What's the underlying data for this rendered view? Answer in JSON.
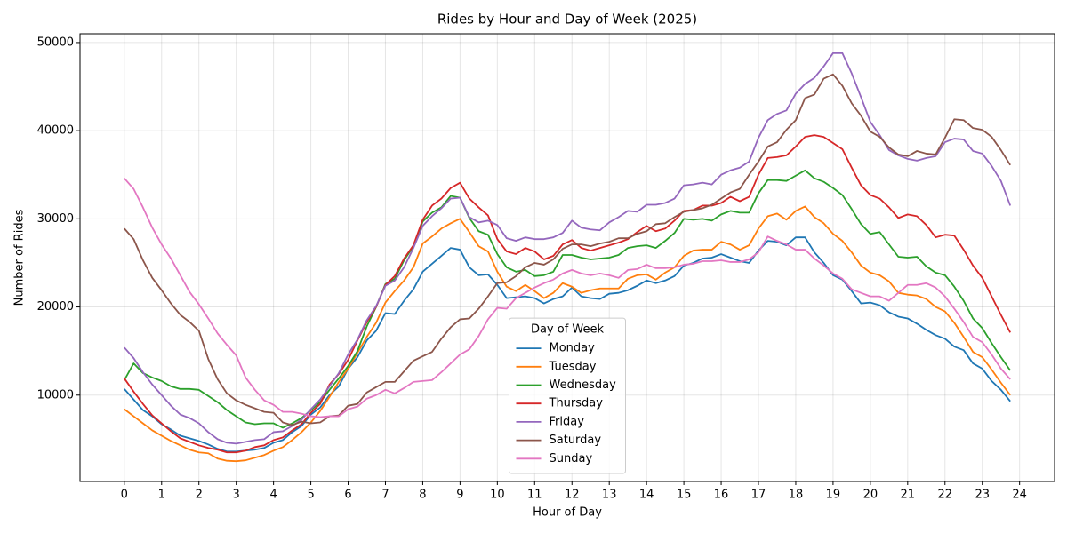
{
  "chart_data": {
    "type": "line",
    "title": "Rides by Hour and Day of Week (2025)",
    "x_label": "Hour of Day",
    "y_label": "Number of Rides",
    "x": [
      0,
      0.25,
      0.5,
      0.75,
      1,
      1.25,
      1.5,
      1.75,
      2,
      2.25,
      2.5,
      2.75,
      3,
      3.25,
      3.5,
      3.75,
      4,
      4.25,
      4.5,
      4.75,
      5,
      5.25,
      5.5,
      5.75,
      6,
      6.25,
      6.5,
      6.75,
      7,
      7.25,
      7.5,
      7.75,
      8,
      8.25,
      8.5,
      8.75,
      9,
      9.25,
      9.5,
      9.75,
      10,
      10.25,
      10.5,
      10.75,
      11,
      11.25,
      11.5,
      11.75,
      12,
      12.25,
      12.5,
      12.75,
      13,
      13.25,
      13.5,
      13.75,
      14,
      14.25,
      14.5,
      14.75,
      15,
      15.25,
      15.5,
      15.75,
      16,
      16.25,
      16.5,
      16.75,
      17,
      17.25,
      17.5,
      17.75,
      18,
      18.25,
      18.5,
      18.75,
      19,
      19.25,
      19.5,
      19.75,
      20,
      20.25,
      20.5,
      20.75,
      21,
      21.25,
      21.5,
      21.75,
      22,
      22.25,
      22.5,
      22.75,
      23,
      23.25,
      23.5,
      23.75
    ],
    "series": [
      {
        "name": "Monday",
        "color": "#1f77b4",
        "values": [
          10700,
          9500,
          8300,
          7600,
          6700,
          6100,
          5400,
          5100,
          4800,
          4400,
          3900,
          3600,
          3600,
          3700,
          3800,
          4000,
          4600,
          4900,
          5800,
          6500,
          7800,
          8600,
          10000,
          11000,
          13000,
          14300,
          16200,
          17300,
          19300,
          19200,
          20700,
          22000,
          24000,
          24900,
          25800,
          26700,
          26500,
          24500,
          23600,
          23700,
          22500,
          21000,
          21100,
          21200,
          21000,
          20400,
          20900,
          21200,
          22200,
          21200,
          21000,
          20900,
          21500,
          21600,
          21900,
          22400,
          23000,
          22700,
          23000,
          23500,
          24700,
          25000,
          25500,
          25600,
          26000,
          25600,
          25200,
          25000,
          26400,
          27500,
          27400,
          27000,
          27900,
          27900,
          26200,
          25000,
          23600,
          23100,
          21800,
          20400,
          20500,
          20200,
          19400,
          18900,
          18700,
          18100,
          17400,
          16800,
          16400,
          15500,
          15100,
          13600,
          13000,
          11600,
          10600,
          9300
        ]
      },
      {
        "name": "Tuesday",
        "color": "#ff7f0e",
        "values": [
          8400,
          7600,
          6800,
          6000,
          5400,
          4800,
          4300,
          3800,
          3500,
          3400,
          2800,
          2550,
          2500,
          2600,
          2900,
          3200,
          3700,
          4100,
          4900,
          5800,
          6900,
          8200,
          9800,
          11500,
          13000,
          14800,
          16600,
          18200,
          20500,
          21800,
          23000,
          24500,
          27200,
          28000,
          28900,
          29500,
          30000,
          28500,
          26900,
          26300,
          24000,
          22300,
          21800,
          22500,
          21800,
          21000,
          21600,
          22700,
          22300,
          21600,
          21900,
          22100,
          22100,
          22100,
          23200,
          23600,
          23700,
          23100,
          23900,
          24500,
          25800,
          26400,
          26500,
          26500,
          27400,
          27100,
          26500,
          27000,
          28900,
          30300,
          30600,
          29900,
          30900,
          31400,
          30200,
          29500,
          28300,
          27500,
          26200,
          24700,
          23900,
          23600,
          22900,
          21600,
          21400,
          21300,
          20900,
          20000,
          19500,
          18200,
          16600,
          14900,
          14300,
          12900,
          11400,
          10000
        ]
      },
      {
        "name": "Wednesday",
        "color": "#2ca02c",
        "values": [
          11700,
          13600,
          12500,
          12000,
          11600,
          11000,
          10700,
          10700,
          10600,
          9900,
          9200,
          8300,
          7600,
          6900,
          6700,
          6800,
          6800,
          6300,
          6800,
          7400,
          8300,
          9200,
          10600,
          11900,
          13300,
          15000,
          17800,
          20000,
          22600,
          23200,
          25300,
          26900,
          29700,
          30700,
          31300,
          32600,
          32400,
          30100,
          28600,
          28200,
          26000,
          24500,
          24000,
          24200,
          23500,
          23600,
          24000,
          25900,
          25900,
          25600,
          25400,
          25500,
          25600,
          25900,
          26700,
          26900,
          27000,
          26700,
          27500,
          28400,
          30000,
          29900,
          30000,
          29800,
          30500,
          30900,
          30700,
          30700,
          32900,
          34400,
          34400,
          34300,
          34900,
          35500,
          34600,
          34200,
          33500,
          32700,
          31100,
          29400,
          28300,
          28500,
          27100,
          25700,
          25600,
          25700,
          24600,
          23900,
          23600,
          22300,
          20700,
          18700,
          17600,
          15900,
          14300,
          12800
        ]
      },
      {
        "name": "Thursday",
        "color": "#d62728",
        "values": [
          11900,
          10400,
          9000,
          7700,
          6800,
          5900,
          5100,
          4700,
          4300,
          4000,
          3800,
          3500,
          3500,
          3700,
          4100,
          4300,
          4900,
          5200,
          6000,
          6700,
          8000,
          9000,
          11200,
          12400,
          14000,
          16200,
          18300,
          20000,
          22500,
          23500,
          25500,
          27000,
          29900,
          31500,
          32300,
          33500,
          34100,
          32300,
          31300,
          30400,
          27700,
          26300,
          26000,
          26700,
          26300,
          25400,
          25800,
          27100,
          27600,
          26700,
          26400,
          26700,
          27000,
          27300,
          27700,
          28500,
          29200,
          28600,
          28900,
          29800,
          30900,
          31000,
          31500,
          31500,
          31800,
          32500,
          32000,
          32500,
          35000,
          36900,
          37000,
          37200,
          38200,
          39300,
          39500,
          39300,
          38600,
          37900,
          35800,
          33800,
          32700,
          32300,
          31300,
          30100,
          30500,
          30300,
          29300,
          27900,
          28200,
          28100,
          26500,
          24700,
          23300,
          21200,
          19100,
          17100
        ]
      },
      {
        "name": "Friday",
        "color": "#9467bd",
        "values": [
          15400,
          14200,
          12600,
          11200,
          10000,
          8800,
          7800,
          7400,
          6800,
          5800,
          5000,
          4600,
          4500,
          4700,
          4900,
          5000,
          5800,
          5900,
          6500,
          7200,
          8400,
          9500,
          11000,
          12500,
          14600,
          16300,
          18500,
          20100,
          22400,
          23000,
          24500,
          26700,
          29200,
          30300,
          31200,
          32300,
          32400,
          30200,
          29600,
          29800,
          29300,
          27800,
          27500,
          27900,
          27700,
          27700,
          27900,
          28400,
          29800,
          29000,
          28800,
          28700,
          29600,
          30200,
          30900,
          30800,
          31600,
          31600,
          31800,
          32300,
          33800,
          33900,
          34100,
          33900,
          35000,
          35500,
          35800,
          36500,
          39200,
          41200,
          41900,
          42300,
          44200,
          45300,
          46000,
          47300,
          48800,
          48800,
          46500,
          43800,
          41000,
          39500,
          37800,
          37200,
          36800,
          36600,
          36900,
          37100,
          38700,
          39100,
          39000,
          37700,
          37400,
          36000,
          34300,
          31500
        ]
      },
      {
        "name": "Saturday",
        "color": "#8c564b",
        "values": [
          28900,
          27700,
          25300,
          23300,
          21900,
          20400,
          19100,
          18300,
          17300,
          14100,
          11800,
          10200,
          9400,
          8900,
          8500,
          8100,
          8000,
          6900,
          6600,
          7000,
          6800,
          6900,
          7600,
          7700,
          8800,
          9000,
          10300,
          10900,
          11500,
          11500,
          12700,
          13900,
          14400,
          14900,
          16400,
          17700,
          18600,
          18700,
          19800,
          21200,
          22700,
          22800,
          23500,
          24500,
          25000,
          24800,
          25400,
          26600,
          27100,
          27100,
          26900,
          27200,
          27400,
          27800,
          27800,
          28300,
          28600,
          29400,
          29500,
          30200,
          30800,
          31000,
          31200,
          31600,
          32300,
          33000,
          33400,
          35000,
          36500,
          38200,
          38700,
          40100,
          41200,
          43700,
          44100,
          45900,
          46400,
          45100,
          43100,
          41700,
          39900,
          39300,
          38100,
          37300,
          37100,
          37700,
          37400,
          37300,
          39200,
          41300,
          41200,
          40300,
          40100,
          39300,
          37800,
          36100
        ]
      },
      {
        "name": "Sunday",
        "color": "#e377c2",
        "values": [
          34600,
          33400,
          31300,
          29000,
          27100,
          25500,
          23600,
          21700,
          20300,
          18700,
          17000,
          15700,
          14500,
          12000,
          10600,
          9400,
          8900,
          8100,
          8100,
          7900,
          7600,
          7500,
          7600,
          7600,
          8400,
          8700,
          9600,
          10000,
          10600,
          10200,
          10800,
          11500,
          11600,
          11700,
          12600,
          13600,
          14600,
          15200,
          16700,
          18600,
          19900,
          19800,
          21000,
          21600,
          22200,
          22700,
          23100,
          23800,
          24200,
          23800,
          23600,
          23800,
          23600,
          23300,
          24200,
          24300,
          24800,
          24400,
          24400,
          24500,
          24800,
          24900,
          25200,
          25200,
          25300,
          25100,
          25100,
          25400,
          26200,
          28000,
          27500,
          27100,
          26500,
          26500,
          25500,
          24700,
          23800,
          23200,
          22000,
          21600,
          21200,
          21200,
          20700,
          21600,
          22500,
          22500,
          22700,
          22200,
          21200,
          19800,
          18300,
          16600,
          16000,
          14600,
          13000,
          11800
        ]
      }
    ],
    "xlim": [
      -1.1875,
      24.9375
    ],
    "ylim": [
      200,
      51000
    ],
    "xticks": [
      0,
      1,
      2,
      3,
      4,
      5,
      6,
      7,
      8,
      9,
      10,
      11,
      12,
      13,
      14,
      15,
      16,
      17,
      18,
      19,
      20,
      21,
      22,
      23,
      24
    ],
    "yticks": [
      10000,
      20000,
      30000,
      40000,
      50000
    ],
    "grid": true,
    "legend": {
      "title": "Day of Week",
      "loc": "lower center"
    }
  }
}
